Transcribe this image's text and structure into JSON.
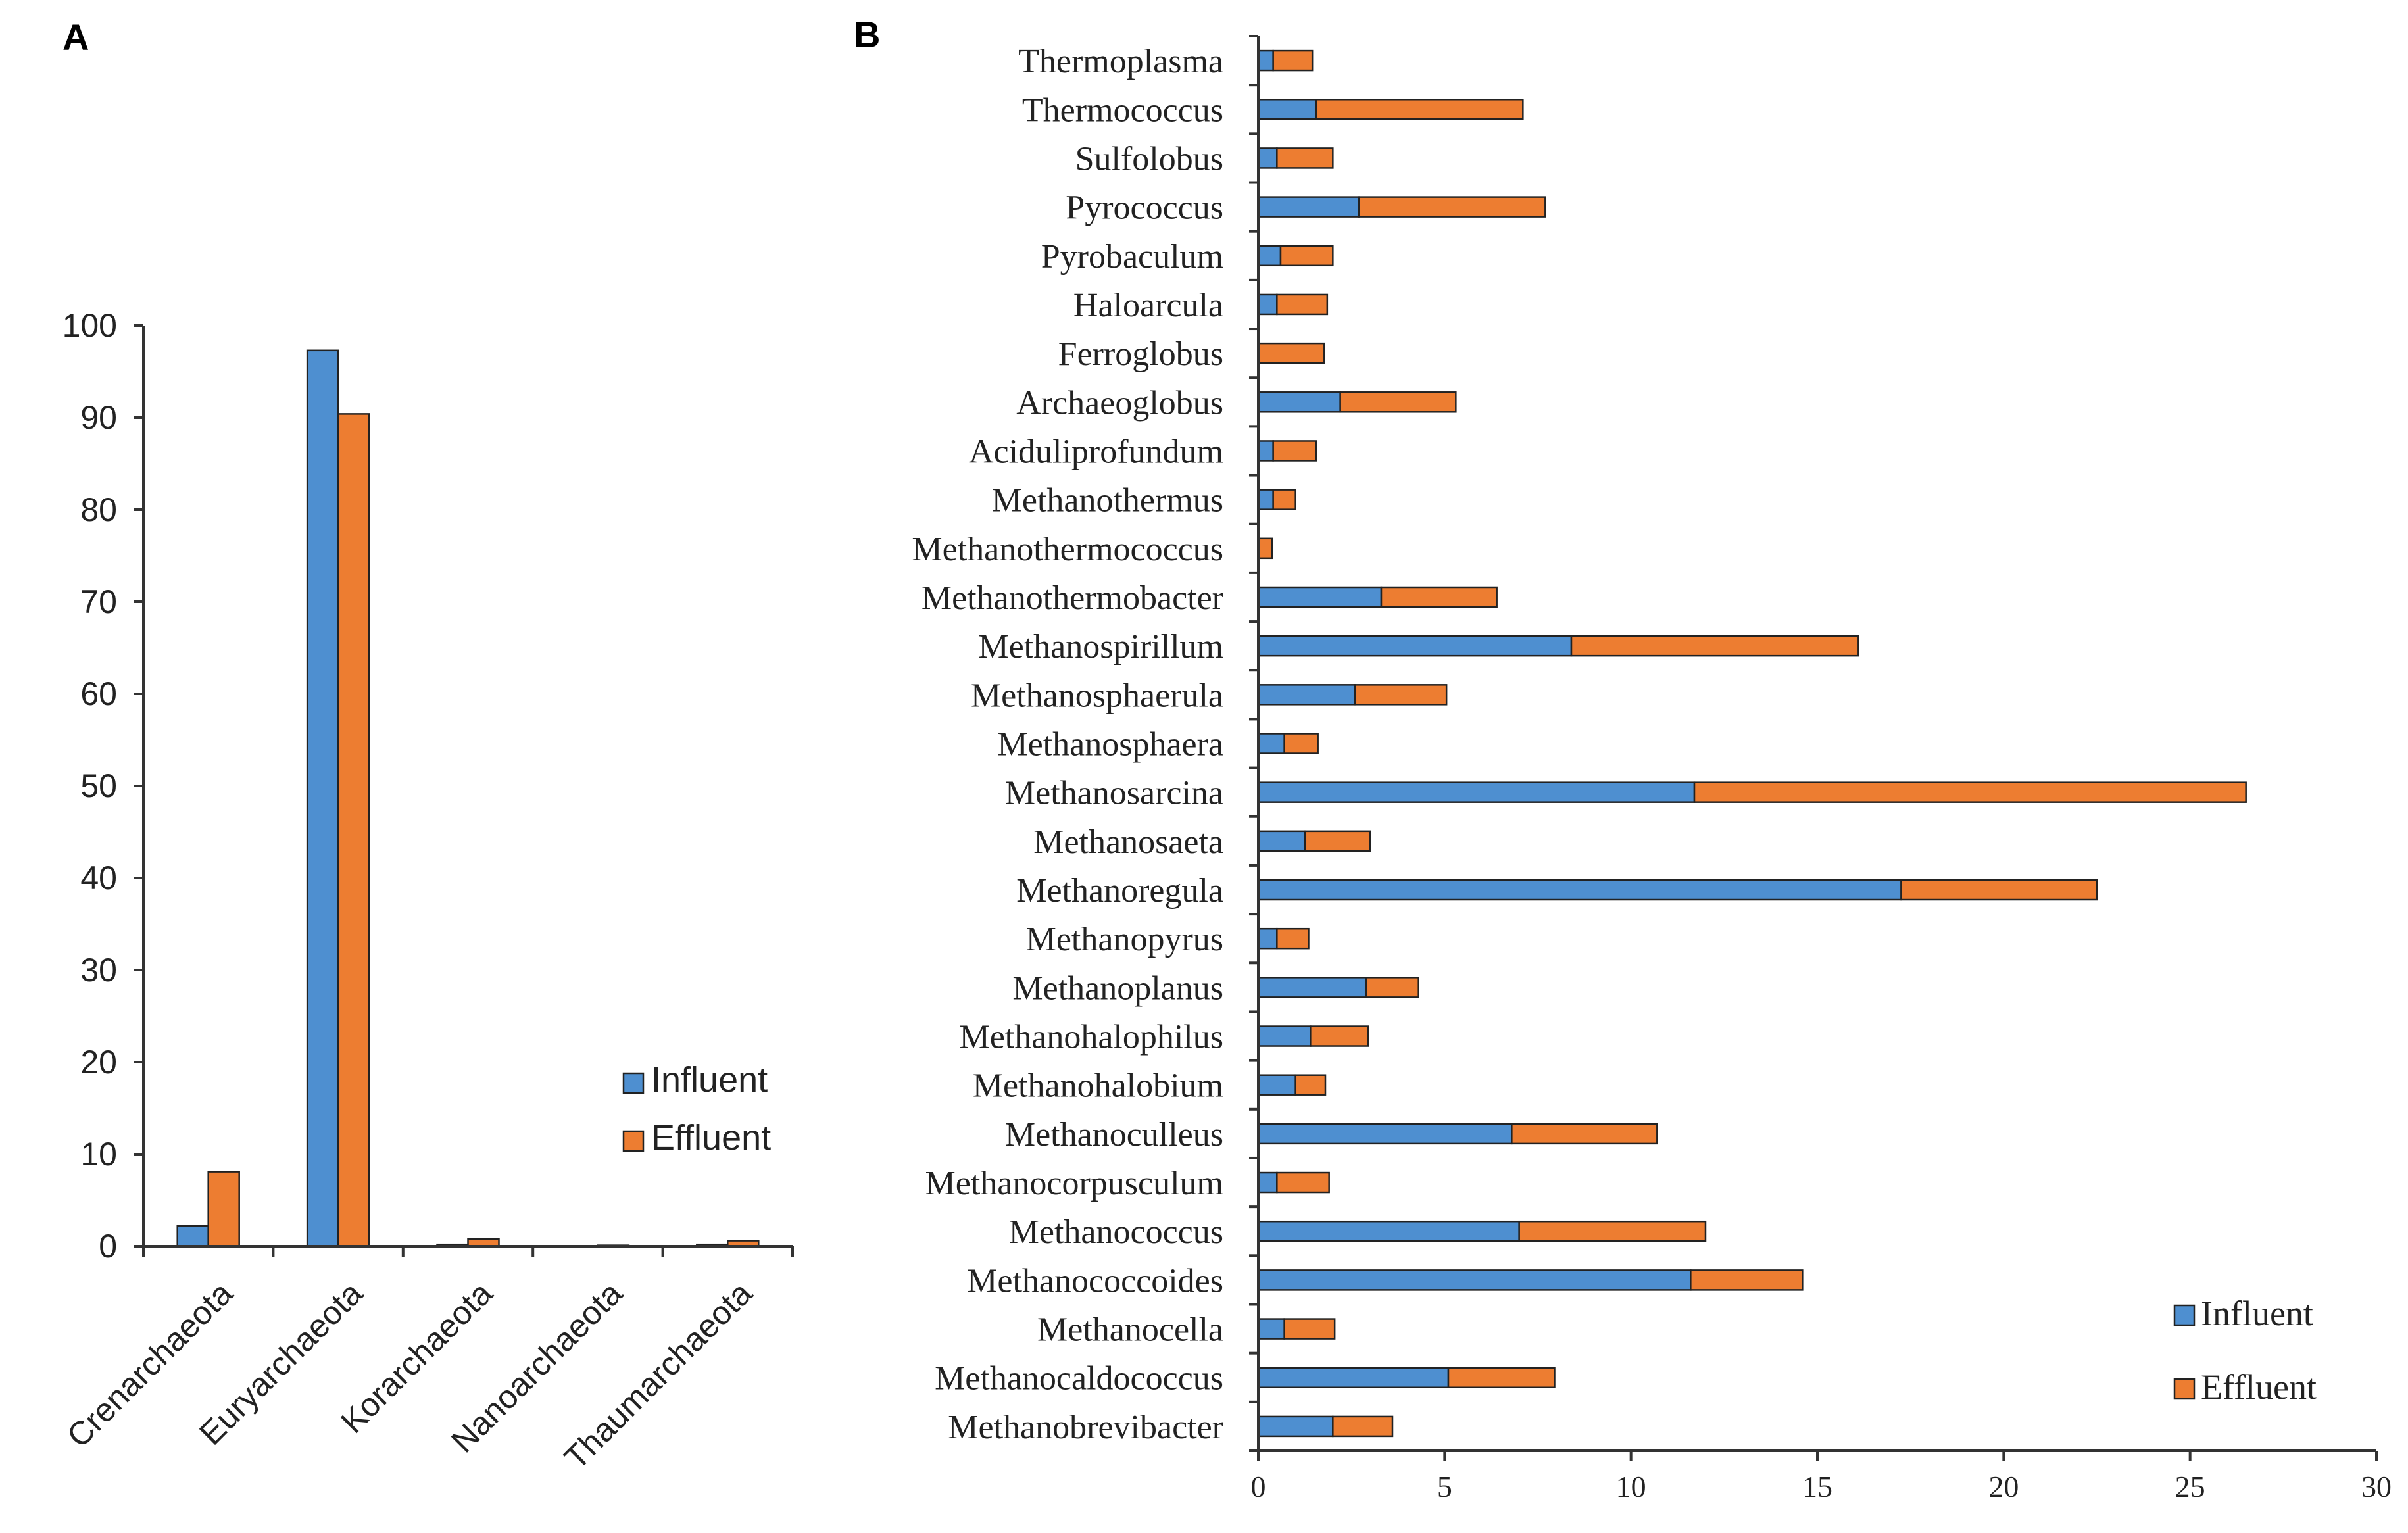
{
  "colors": {
    "influent": "#4e8fd0",
    "effluent": "#ed7d31",
    "outline": "#222222"
  },
  "chart_data": [
    {
      "panel": "A",
      "type": "bar",
      "title": "",
      "xlabel": "",
      "ylabel": "",
      "ylim": [
        0,
        100
      ],
      "yticks": [
        0,
        10,
        20,
        30,
        40,
        50,
        60,
        70,
        80,
        90,
        100
      ],
      "categories": [
        "Crenarchaeota",
        "Euryarchaeota",
        "Korarchaeota",
        "Nanoarchaeota",
        "Thaumarchaeota"
      ],
      "series": [
        {
          "name": "Influent",
          "values": [
            2.2,
            97.3,
            0.2,
            0.05,
            0.2
          ]
        },
        {
          "name": "Effluent",
          "values": [
            8.1,
            90.4,
            0.8,
            0.1,
            0.6
          ]
        }
      ],
      "legend": "right"
    },
    {
      "panel": "B",
      "type": "bar",
      "orientation": "horizontal",
      "stacked": true,
      "title": "",
      "xlabel": "",
      "ylabel": "",
      "xlim": [
        0,
        30
      ],
      "xticks": [
        0,
        5,
        10,
        15,
        20,
        25,
        30
      ],
      "categories": [
        "Thermoplasma",
        "Thermococcus",
        "Sulfolobus",
        "Pyrococcus",
        "Pyrobaculum",
        "Haloarcula",
        "Ferroglobus",
        "Archaeoglobus",
        "Aciduliprofundum",
        "Methanothermus",
        "Methanothermococcus",
        "Methanothermobacter",
        "Methanospirillum",
        "Methanosphaerula",
        "Methanosphaera",
        "Methanosarcina",
        "Methanosaeta",
        "Methanoregula",
        "Methanopyrus",
        "Methanoplanus",
        "Methanohalophilus",
        "Methanohalobium",
        "Methanoculleus",
        "Methanocorpusculum",
        "Methanococcus",
        "Methanococcoides",
        "Methanocella",
        "Methanocaldococcus",
        "Methanobrevibacter"
      ],
      "series": [
        {
          "name": "Influent",
          "values": [
            0.4,
            1.55,
            0.5,
            2.7,
            0.6,
            0.5,
            0.02,
            2.2,
            0.4,
            0.4,
            0.02,
            3.3,
            8.4,
            2.6,
            0.7,
            11.7,
            1.25,
            17.25,
            0.5,
            2.9,
            1.4,
            1.0,
            6.8,
            0.5,
            7.0,
            11.6,
            0.7,
            5.1,
            2.0
          ]
        },
        {
          "name": "Effluent",
          "values": [
            1.05,
            5.55,
            1.5,
            5.0,
            1.4,
            1.35,
            1.75,
            3.1,
            1.15,
            0.6,
            0.35,
            3.1,
            7.7,
            2.45,
            0.9,
            14.8,
            1.75,
            5.25,
            0.85,
            1.4,
            1.55,
            0.8,
            3.9,
            1.4,
            5.0,
            3.0,
            1.35,
            2.85,
            1.6
          ]
        }
      ],
      "legend": "bottom-right"
    }
  ]
}
